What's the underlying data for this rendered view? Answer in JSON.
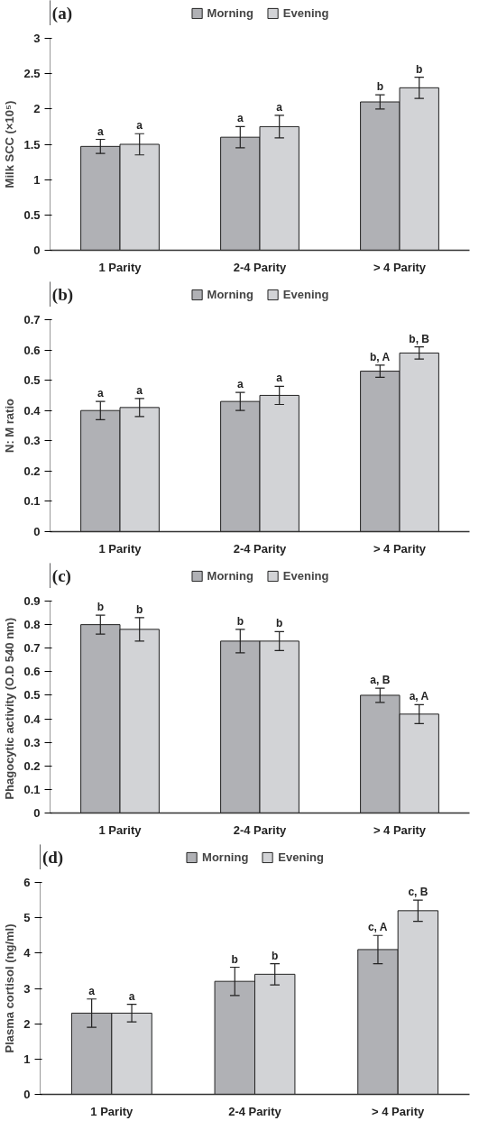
{
  "chart_data": [
    {
      "type": "bar",
      "title": "(a)",
      "ylabel": "Milk SCC (×10⁵)",
      "categories": [
        "1 Parity",
        "2-4 Parity",
        "> 4 Parity"
      ],
      "ylim": [
        0,
        3
      ],
      "yticks": [
        0,
        0.5,
        1,
        1.5,
        2,
        2.5,
        3
      ],
      "grid": false,
      "legend": "top",
      "series": [
        {
          "name": "Morning",
          "color": "#b0b1b5",
          "values": [
            1.47,
            1.6,
            2.1
          ],
          "errors": [
            0.1,
            0.15,
            0.1
          ],
          "value_labels": [
            "a",
            "a",
            "b"
          ]
        },
        {
          "name": "Evening",
          "color": "#d2d3d6",
          "values": [
            1.5,
            1.75,
            2.3
          ],
          "errors": [
            0.15,
            0.16,
            0.15
          ],
          "value_labels": [
            "a",
            "a",
            "b"
          ]
        }
      ]
    },
    {
      "type": "bar",
      "title": "(b)",
      "ylabel": "N: M ratio",
      "categories": [
        "1 Parity",
        "2-4 Parity",
        "> 4 Parity"
      ],
      "ylim": [
        0,
        0.7
      ],
      "yticks": [
        0,
        0.1,
        0.2,
        0.3,
        0.4,
        0.5,
        0.6,
        0.7
      ],
      "grid": false,
      "legend": "top",
      "series": [
        {
          "name": "Morning",
          "color": "#b0b1b5",
          "values": [
            0.4,
            0.43,
            0.53
          ],
          "errors": [
            0.03,
            0.03,
            0.02
          ],
          "value_labels": [
            "a",
            "a",
            "b, A"
          ]
        },
        {
          "name": "Evening",
          "color": "#d2d3d6",
          "values": [
            0.41,
            0.45,
            0.59
          ],
          "errors": [
            0.03,
            0.03,
            0.02
          ],
          "value_labels": [
            "a",
            "a",
            "b, B"
          ]
        }
      ]
    },
    {
      "type": "bar",
      "title": "(c)",
      "ylabel": "Phagocytic  activity (O.D 540 nm)",
      "categories": [
        "1 Parity",
        "2-4 Parity",
        "> 4 Parity"
      ],
      "ylim": [
        0,
        0.9
      ],
      "yticks": [
        0,
        0.1,
        0.2,
        0.3,
        0.4,
        0.5,
        0.6,
        0.7,
        0.8,
        0.9
      ],
      "grid": false,
      "legend": "top",
      "series": [
        {
          "name": "Morning",
          "color": "#b0b1b5",
          "values": [
            0.8,
            0.73,
            0.5
          ],
          "errors": [
            0.04,
            0.05,
            0.03
          ],
          "value_labels": [
            "b",
            "b",
            "a, B"
          ]
        },
        {
          "name": "Evening",
          "color": "#d2d3d6",
          "values": [
            0.78,
            0.73,
            0.42
          ],
          "errors": [
            0.05,
            0.04,
            0.04
          ],
          "value_labels": [
            "b",
            "b",
            "a, A"
          ]
        }
      ]
    },
    {
      "type": "bar",
      "title": "(d)",
      "ylabel": "Plasma cortisol (ng/ml)",
      "categories": [
        "1 Parity",
        "2-4 Parity",
        "> 4 Parity"
      ],
      "ylim": [
        0,
        6
      ],
      "yticks": [
        0,
        1,
        2,
        3,
        4,
        5,
        6
      ],
      "grid": false,
      "legend": "top",
      "series": [
        {
          "name": "Morning",
          "color": "#b0b1b5",
          "values": [
            2.3,
            3.2,
            4.1
          ],
          "errors": [
            0.4,
            0.4,
            0.4
          ],
          "value_labels": [
            "a",
            "b",
            "c, A"
          ]
        },
        {
          "name": "Evening",
          "color": "#d2d3d6",
          "values": [
            2.3,
            3.4,
            5.2
          ],
          "errors": [
            0.25,
            0.3,
            0.3
          ],
          "value_labels": [
            "a",
            "b",
            "c, B"
          ]
        }
      ]
    }
  ]
}
